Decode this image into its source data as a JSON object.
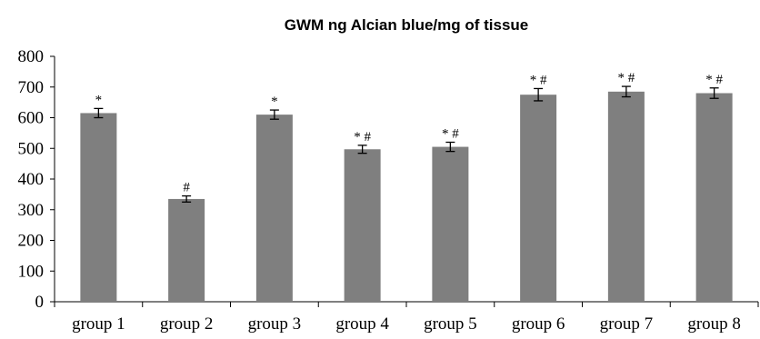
{
  "chart_data": {
    "type": "bar",
    "title": "GWM ng Alcian blue/mg of tissue",
    "xlabel": "",
    "ylabel": "",
    "categories": [
      "group 1",
      "group 2",
      "group 3",
      "group 4",
      "group 5",
      "group 6",
      "group 7",
      "group 8"
    ],
    "values": [
      615,
      335,
      610,
      497,
      505,
      675,
      685,
      680
    ],
    "error": [
      15,
      10,
      15,
      13,
      15,
      20,
      17,
      17
    ],
    "annotations": [
      "*",
      "#",
      "*",
      "* #",
      "* #",
      "* #",
      "* #",
      "* #"
    ],
    "ylim": [
      0,
      800
    ],
    "yticks": [
      0,
      100,
      200,
      300,
      400,
      500,
      600,
      700,
      800
    ],
    "grid": false,
    "colors": {
      "bar": "#7f7f7f",
      "axis": "#000000"
    }
  }
}
